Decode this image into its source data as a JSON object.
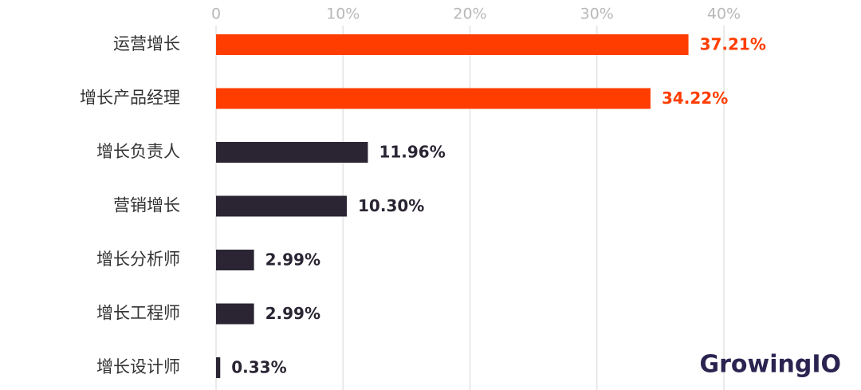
{
  "chart_data": {
    "type": "hbar",
    "categories": [
      "运营增长",
      "增长产品经理",
      "增长负责人",
      "营销增长",
      "增长分析师",
      "增长工程师",
      "增长设计师"
    ],
    "values": [
      37.21,
      34.22,
      11.96,
      10.3,
      2.99,
      2.99,
      0.33
    ],
    "value_labels": [
      "37.21%",
      "34.22%",
      "11.96%",
      "10.30%",
      "2.99%",
      "2.99%",
      "0.33%"
    ],
    "colors": [
      "#ff3d00",
      "#ff3d00",
      "#2a2433",
      "#2a2433",
      "#2a2433",
      "#2a2433",
      "#2a2433"
    ],
    "xlim": [
      0,
      40
    ],
    "xticks": [
      0,
      {
        "value": 10,
        "label": "10%"
      },
      {
        "value": 20,
        "label": "20%"
      },
      {
        "value": 30,
        "label": "30%"
      },
      {
        "value": 40,
        "label": "40%"
      }
    ],
    "grid": true,
    "watermark": "GrowingIO"
  }
}
